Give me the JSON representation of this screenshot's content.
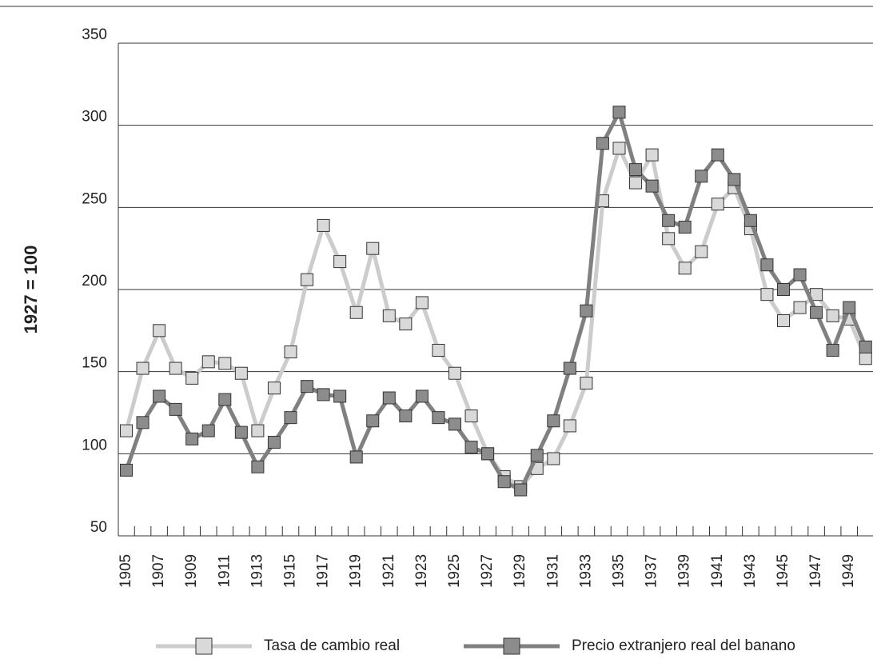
{
  "chart_data": {
    "type": "line",
    "y_label": "1927 = 100",
    "categories": [
      "1905",
      null,
      "1907",
      null,
      "1909",
      null,
      "1911",
      null,
      "1913",
      null,
      "1915",
      null,
      "1917",
      null,
      "1919",
      null,
      "1921",
      null,
      "1923",
      null,
      "1925",
      null,
      "1927",
      null,
      "1929",
      null,
      "1931",
      null,
      "1933",
      null,
      "1935",
      null,
      "1937",
      null,
      "1939",
      null,
      "1941",
      null,
      "1943",
      null,
      "1945",
      null,
      "1947",
      null,
      "1949",
      null
    ],
    "series": [
      {
        "name": "Tasa de cambio real",
        "color": "#cccccc",
        "marker_color": "#d9d9d9",
        "values": [
          114,
          152,
          175,
          152,
          146,
          156,
          155,
          149,
          114,
          140,
          162,
          206,
          239,
          217,
          186,
          225,
          184,
          179,
          192,
          163,
          149,
          123,
          100,
          86,
          80,
          91,
          97,
          117,
          143,
          254,
          286,
          265,
          282,
          231,
          213,
          223,
          252,
          262,
          237,
          197,
          181,
          189,
          197,
          184,
          182,
          158
        ]
      },
      {
        "name": "Precio extranjero real del banano",
        "color": "#808080",
        "marker_color": "#8c8c8c",
        "values": [
          90,
          119,
          135,
          127,
          109,
          114,
          133,
          113,
          92,
          107,
          122,
          141,
          136,
          135,
          98,
          120,
          134,
          123,
          135,
          122,
          118,
          104,
          100,
          83,
          78,
          99,
          120,
          152,
          187,
          289,
          308,
          273,
          263,
          242,
          238,
          269,
          282,
          267,
          242,
          215,
          200,
          209,
          186,
          163,
          189,
          165
        ]
      }
    ],
    "ylim": [
      50,
      350
    ],
    "yticks": [
      50,
      100,
      150,
      200,
      250,
      300,
      350
    ],
    "grid": true
  }
}
